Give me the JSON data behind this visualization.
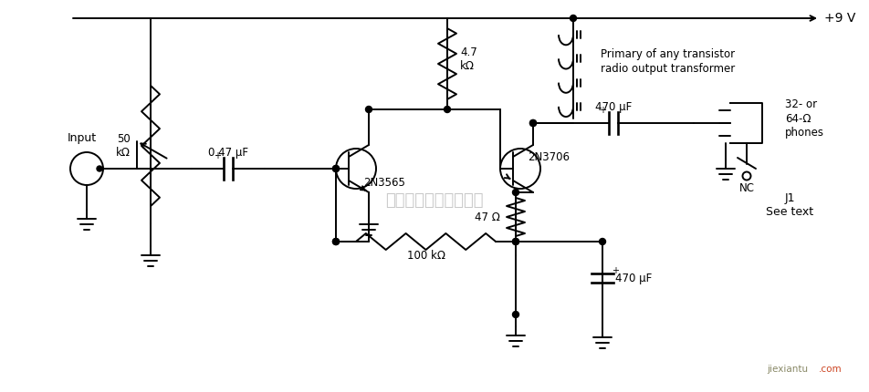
{
  "bg_color": "#ffffff",
  "line_color": "#000000",
  "text_color": "#000000",
  "components": {
    "vcc_label": "+9 V",
    "input_label": "Input",
    "r1_label": "4.7\nkΩ",
    "r2_label": "50\nkΩ",
    "r3_label": "100 kΩ",
    "r4_label": "47 Ω",
    "c1_label": "0.47 μF",
    "c2_label": "470 μF",
    "c3_label": "470 μF",
    "q1_label": "2N3565",
    "q2_label": "2N3706",
    "transformer_label": "Primary of any transistor\nradio output transformer",
    "phones_label": "32- or\n64-Ω\nphones",
    "nc_label": "NC",
    "j1_label": "J1\nSee text",
    "watermark": "杭州将鹰科技有限公司",
    "logo_text": "jiexiantu",
    "logo_com": ".com"
  }
}
